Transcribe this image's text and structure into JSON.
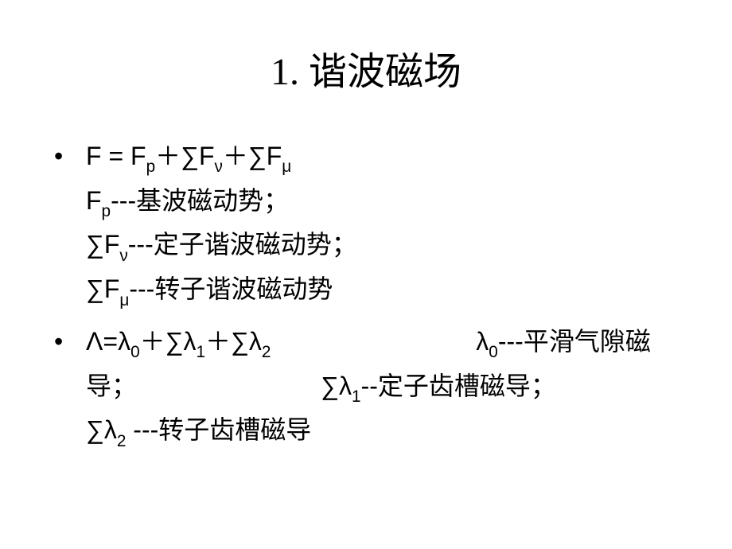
{
  "title": "1. 谐波磁场",
  "bullets": [
    {
      "marker": "•",
      "lines": [
        [
          {
            "t": "F = F"
          },
          {
            "t": "p",
            "sub": true
          },
          {
            "t": "＋∑F"
          },
          {
            "t": "ν",
            "sub": true
          },
          {
            "t": "＋∑F"
          },
          {
            "t": "μ",
            "sub": true
          }
        ],
        [
          {
            "t": "F"
          },
          {
            "t": "p",
            "sub": true
          },
          {
            "t": "---基波磁动势；"
          }
        ],
        [
          {
            "t": "∑F"
          },
          {
            "t": "ν",
            "sub": true
          },
          {
            "t": "---定子谐波磁动势；"
          }
        ],
        [
          {
            "t": "∑F"
          },
          {
            "t": "μ",
            "sub": true
          },
          {
            "t": "---转子谐波磁动势"
          }
        ]
      ]
    },
    {
      "marker": "•",
      "lines": [
        [
          {
            "t": "Λ=λ"
          },
          {
            "t": "0",
            "sub": true
          },
          {
            "t": "＋∑λ"
          },
          {
            "t": "1",
            "sub": true
          },
          {
            "t": "＋∑λ"
          },
          {
            "t": "2",
            "sub": true
          },
          {
            "t": "                             λ"
          },
          {
            "t": "0",
            "sub": true
          },
          {
            "t": "---平滑气隙磁导；                          ∑λ"
          },
          {
            "t": "1",
            "sub": true
          },
          {
            "t": "--定子齿槽磁导；                     ∑λ"
          },
          {
            "t": "2",
            "sub": true
          },
          {
            "t": " ---转子齿槽磁导"
          }
        ]
      ]
    }
  ],
  "styles": {
    "background_color": "#ffffff",
    "text_color": "#000000",
    "title_fontsize": 48,
    "body_fontsize": 32,
    "sub_scale": 0.65,
    "font_family": "SimSun / Times New Roman"
  }
}
